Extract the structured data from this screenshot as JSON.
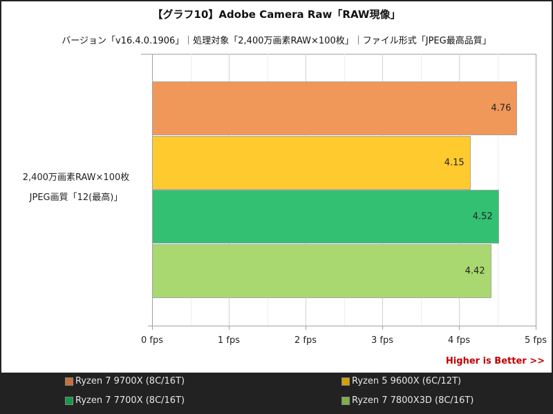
{
  "chart_data": {
    "type": "bar",
    "orientation": "horizontal",
    "title": "【グラフ10】Adobe Camera Raw「RAW現像」",
    "subtitle": "バージョン「v16.4.0.1906」｜処理対象「2,400万画素RAW×100枚」｜ファイル形式「JPEG最高品質」",
    "categories": [
      "2,400万画素RAW×100枚 JPEG画質「12(最高)」"
    ],
    "category_lines": [
      "2,400万画素RAW×100枚",
      "JPEG画質「12(最高)」"
    ],
    "series": [
      {
        "name": "Ryzen 7 9700X (8C/16T)",
        "values": [
          4.76
        ],
        "label": "4.76",
        "color": "#f0975a",
        "legend_color": "#c8703a"
      },
      {
        "name": "Ryzen 5 9600X (6C/12T)",
        "values": [
          4.15
        ],
        "label": "4.15",
        "color": "#ffca2e",
        "legend_color": "#d8a000"
      },
      {
        "name": "Ryzen 7 7700X (8C/16T)",
        "values": [
          4.52
        ],
        "label": "4.52",
        "color": "#33c073",
        "legend_color": "#149a48"
      },
      {
        "name": "Ryzen 7 7800X3D (8C/16T)",
        "values": [
          4.42
        ],
        "label": "4.42",
        "color": "#a9d870",
        "legend_color": "#7aaf4a"
      }
    ],
    "xlabel": "",
    "ylabel": "",
    "xlim": [
      0,
      5
    ],
    "xticks": [
      "0 fps",
      "1 fps",
      "2 fps",
      "3 fps",
      "4 fps",
      "5 fps"
    ],
    "grid": true,
    "legend_position": "bottom",
    "annotation": "Higher is Better >>"
  }
}
